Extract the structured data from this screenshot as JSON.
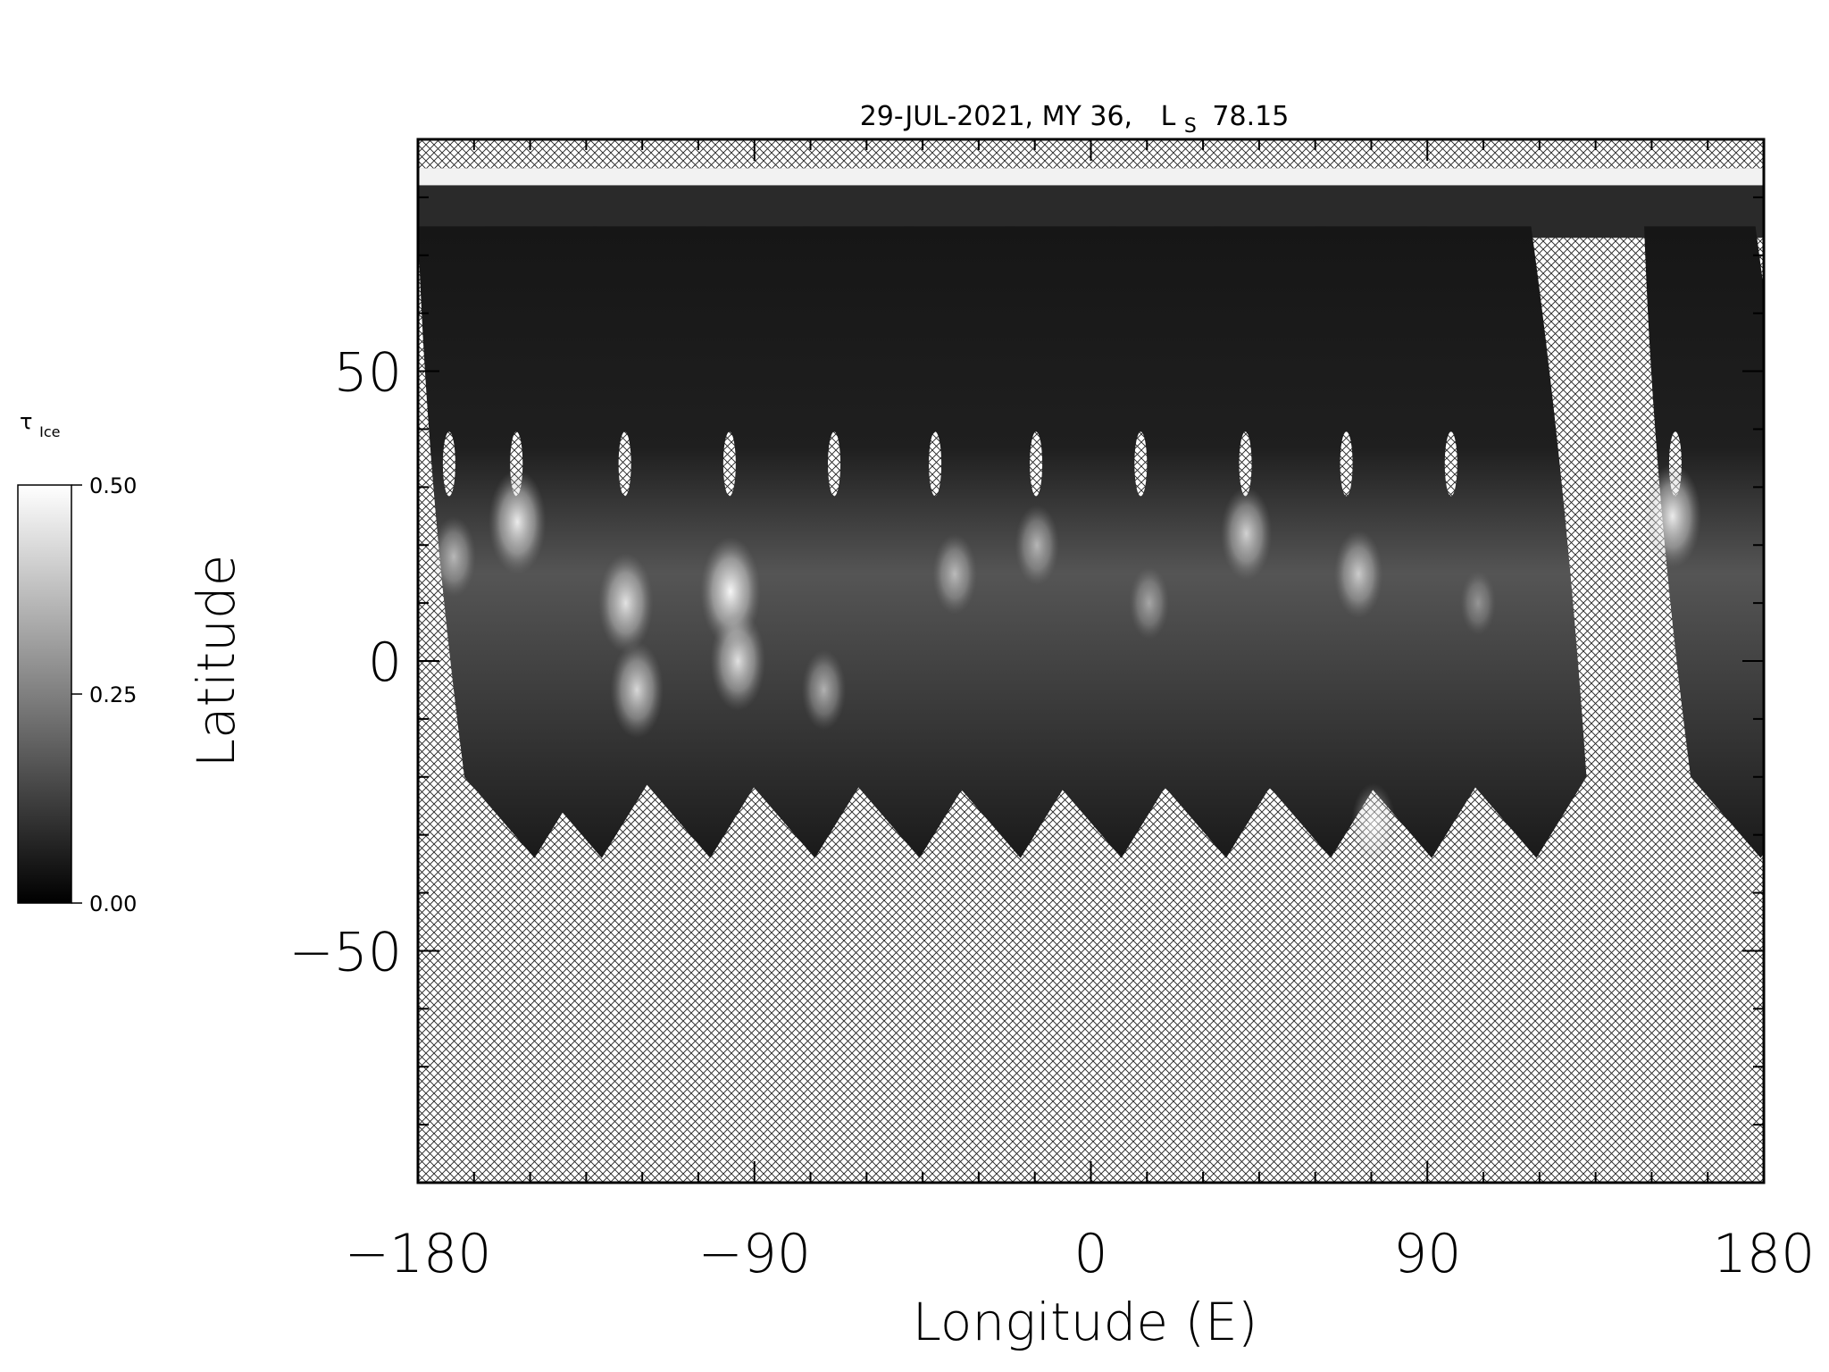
{
  "chart_data": {
    "type": "heatmap",
    "title": "29-JUL-2021, MY 36,",
    "title_ls_symbol": "L",
    "title_ls_sub": "S",
    "title_ls_value": "78.15",
    "xlabel": "Longitude (E)",
    "ylabel": "Latitude",
    "xlim": [
      -180,
      180
    ],
    "ylim": [
      -90,
      90
    ],
    "xticks": [
      {
        "v": -180,
        "label": "−180"
      },
      {
        "v": -90,
        "label": "−90"
      },
      {
        "v": 0,
        "label": "0"
      },
      {
        "v": 90,
        "label": "90"
      },
      {
        "v": 180,
        "label": "180"
      }
    ],
    "yticks": [
      {
        "v": 50,
        "label": "50"
      },
      {
        "v": 0,
        "label": "0"
      },
      {
        "v": -50,
        "label": "−50"
      }
    ],
    "colorbar": {
      "label_symbol": "τ",
      "label_sub": "Ice",
      "ticks": [
        {
          "v": 0.5,
          "label": "0.50"
        },
        {
          "v": 0.25,
          "label": "0.25"
        },
        {
          "v": 0.0,
          "label": "0.00"
        }
      ],
      "range": [
        0,
        0.5
      ],
      "colormap": "grayscale"
    },
    "north_cap_lat": 85,
    "swaths": [
      {
        "lon": -180,
        "lat_top": 75,
        "lat_bot": -34,
        "bright": [
          {
            "lon": -174,
            "lat": 18,
            "v": 0.3
          }
        ]
      },
      {
        "lon": -162,
        "lat_top": 75,
        "lat_bot": -34,
        "bright": [
          {
            "lon": -157,
            "lat": 24,
            "v": 0.45
          }
        ]
      },
      {
        "lon": -133,
        "lat_top": 75,
        "lat_bot": -34,
        "bright": [
          {
            "lon": -128,
            "lat": 10,
            "v": 0.42
          },
          {
            "lon": -125,
            "lat": -5,
            "v": 0.4
          }
        ]
      },
      {
        "lon": -105,
        "lat_top": 75,
        "lat_bot": -34,
        "bright": [
          {
            "lon": -100,
            "lat": 12,
            "v": 0.48
          },
          {
            "lon": -98,
            "lat": 0,
            "v": 0.42
          }
        ]
      },
      {
        "lon": -77,
        "lat_top": 75,
        "lat_bot": -34,
        "bright": [
          {
            "lon": -75,
            "lat": -5,
            "v": 0.3
          }
        ]
      },
      {
        "lon": -50,
        "lat_top": 75,
        "lat_bot": -34,
        "bright": [
          {
            "lon": -40,
            "lat": 15,
            "v": 0.3
          }
        ]
      },
      {
        "lon": -23,
        "lat_top": 75,
        "lat_bot": -34,
        "bright": [
          {
            "lon": -18,
            "lat": 20,
            "v": 0.3
          }
        ]
      },
      {
        "lon": 5,
        "lat_top": 75,
        "lat_bot": -34,
        "bright": [
          {
            "lon": 12,
            "lat": 10,
            "v": 0.25
          }
        ]
      },
      {
        "lon": 33,
        "lat_top": 75,
        "lat_bot": -34,
        "bright": [
          {
            "lon": 38,
            "lat": 22,
            "v": 0.38
          }
        ]
      },
      {
        "lon": 60,
        "lat_top": 75,
        "lat_bot": -34,
        "bright": [
          {
            "lon": 68,
            "lat": 15,
            "v": 0.35
          },
          {
            "lon": 72,
            "lat": -28,
            "v": 0.3
          }
        ]
      },
      {
        "lon": 88,
        "lat_top": 75,
        "lat_bot": -34,
        "bright": [
          {
            "lon": 100,
            "lat": 10,
            "v": 0.2
          }
        ]
      },
      {
        "lon": 148,
        "lat_top": 75,
        "lat_bot": -34,
        "bright": [
          {
            "lon": 152,
            "lat": 25,
            "v": 0.45
          }
        ]
      }
    ]
  }
}
